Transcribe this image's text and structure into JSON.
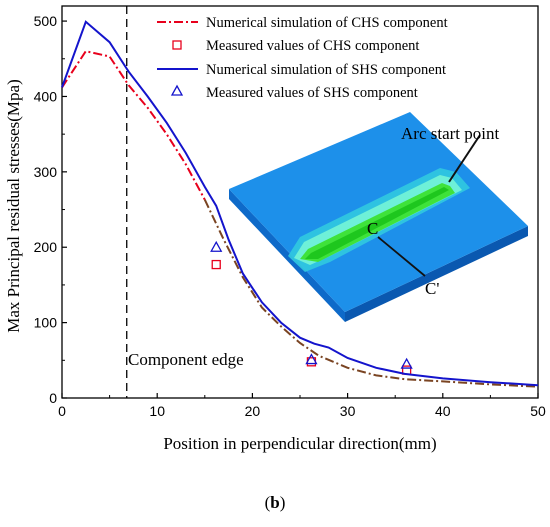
{
  "caption": {
    "open": "(",
    "letter": "b",
    "close": ")"
  },
  "chart_data": {
    "type": "line",
    "xlabel": "Position in perpendicular direction(mm)",
    "ylabel": "Max Principal residual stresses(Mpa)",
    "xlim": [
      0,
      50
    ],
    "ylim": [
      0,
      520
    ],
    "xticks": [
      0,
      10,
      20,
      30,
      40,
      50
    ],
    "yticks": [
      0,
      100,
      200,
      300,
      400,
      500
    ],
    "grid": false,
    "legend_position": "top-right",
    "series": [
      {
        "name": "Numerical simulation of CHS component",
        "kind": "line",
        "style": "dash-dot",
        "color": "#e8001c",
        "color2": "#7a4422",
        "x": [
          0,
          2.5,
          5,
          7,
          9,
          11,
          13,
          15,
          17,
          19,
          21,
          23,
          25,
          27,
          30,
          33,
          36,
          40,
          45,
          50
        ],
        "y": [
          412,
          460,
          453,
          415,
          385,
          350,
          310,
          263,
          210,
          160,
          120,
          95,
          73,
          56,
          40,
          30,
          25,
          22,
          18,
          15
        ]
      },
      {
        "name": "Measured values of CHS component",
        "kind": "marker",
        "marker": "square",
        "color": "#e8001c",
        "x": [
          16.2,
          26.2,
          36.2
        ],
        "y": [
          177,
          48,
          37
        ]
      },
      {
        "name": "Numerical simulation of SHS component",
        "kind": "line",
        "style": "solid",
        "color": "#1414cc",
        "x": [
          0,
          2.5,
          5,
          7,
          9,
          11,
          13,
          15,
          16.2,
          17.5,
          19,
          21,
          23,
          25,
          26.5,
          28,
          30,
          33,
          36,
          40,
          45,
          50
        ],
        "y": [
          412,
          499,
          472,
          433,
          400,
          365,
          325,
          280,
          255,
          210,
          165,
          127,
          100,
          80,
          72,
          67,
          53,
          40,
          32,
          26,
          21,
          17
        ]
      },
      {
        "name": "Measured values of SHS component",
        "kind": "marker",
        "marker": "triangle",
        "color": "#1414cc",
        "x": [
          16.2,
          26.2,
          36.2
        ],
        "y": [
          200,
          51,
          45
        ]
      }
    ],
    "annotations": {
      "component_edge": {
        "label": "Component edge",
        "x": 6.8
      },
      "arc_start": {
        "label": "Arc start point"
      },
      "c_label": {
        "label": "C"
      },
      "c_prime_label": {
        "label": "C'"
      }
    }
  },
  "colors": {
    "plate": "#1d90ea",
    "plate_edge": "#0a63b8",
    "weld_outer": "#2fd2d8",
    "weld_inner": "#7dffd2",
    "weld_core": "#3fe23a"
  }
}
